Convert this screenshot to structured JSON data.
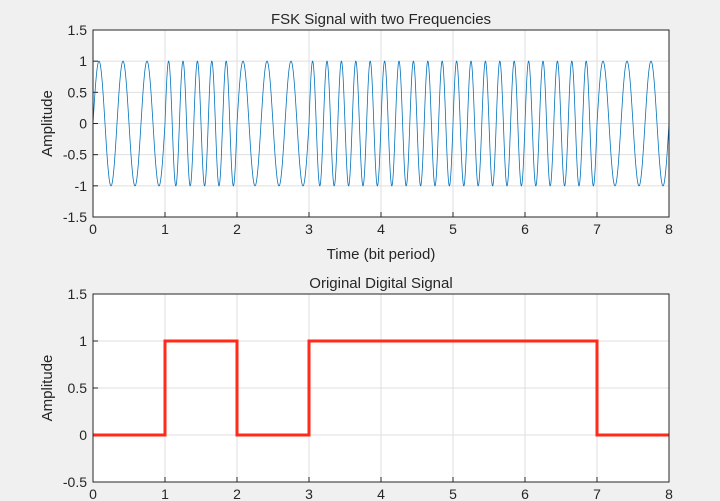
{
  "chart_data": [
    {
      "type": "line",
      "title": "FSK Signal with two Frequencies",
      "xlabel": "Time (bit period)",
      "ylabel": "Amplitude",
      "xlim": [
        0,
        8
      ],
      "ylim": [
        -1.5,
        1.5
      ],
      "xticks": [
        0,
        1,
        2,
        3,
        4,
        5,
        6,
        7,
        8
      ],
      "yticks": [
        -1.5,
        -1,
        -0.5,
        0,
        0.5,
        1,
        1.5
      ],
      "grid": true,
      "bits": [
        0,
        1,
        0,
        1,
        1,
        1,
        1,
        0
      ],
      "freq_bit0_cycles_per_bit": 3,
      "freq_bit1_cycles_per_bit": 5,
      "amplitude": 1,
      "color": "#0072bd"
    },
    {
      "type": "line",
      "title": "Original Digital Signal",
      "xlabel": "",
      "ylabel": "Amplitude",
      "xlim": [
        0,
        8
      ],
      "ylim": [
        -0.5,
        1.5
      ],
      "xticks": [
        0,
        1,
        2,
        3,
        4,
        5,
        6,
        7,
        8
      ],
      "yticks": [
        -0.5,
        0,
        0.5,
        1,
        1.5
      ],
      "grid": true,
      "x": [
        0,
        1,
        1,
        2,
        2,
        3,
        3,
        7,
        7,
        8
      ],
      "y": [
        0,
        0,
        1,
        1,
        0,
        0,
        1,
        1,
        0,
        0
      ],
      "color": "#ff2a1a"
    }
  ]
}
